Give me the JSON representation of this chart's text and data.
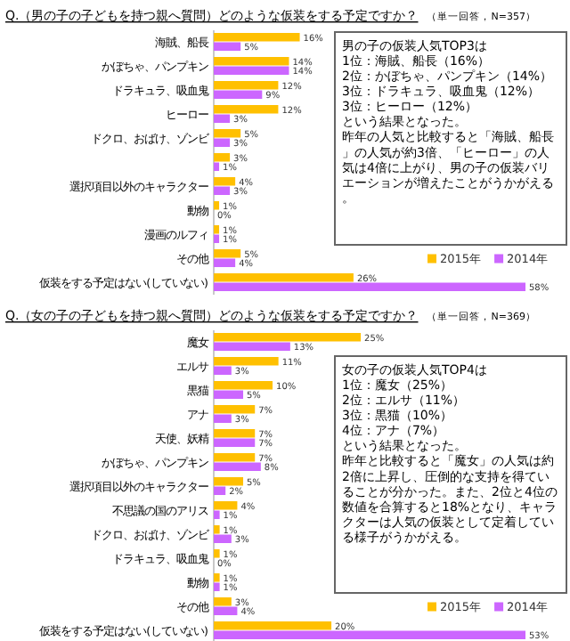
{
  "chart_data": [
    {
      "type": "bar",
      "orientation": "horizontal",
      "title": "Q.（男の子の子どもを持つ親へ質問）どのような仮装をする予定ですか？",
      "subtitle": "（単一回答，N=357）",
      "categories": [
        "海賊、船長",
        "かぼちゃ、パンプキン",
        "ドラキュラ、吸血鬼",
        "ヒーロー",
        "ドクロ、おばけ、ゾンビ",
        null,
        "選択項目以外のキャラクター",
        "動物",
        "漫画のルフィ",
        "その他",
        "仮装をする予定はない(していない)"
      ],
      "series": [
        {
          "name": "2015年",
          "color": "#ffc000",
          "values": [
            16,
            14,
            12,
            12,
            5,
            3,
            4,
            1,
            1,
            5,
            26
          ],
          "value_labels": [
            "16%",
            "14%",
            "12%",
            "12%",
            "5%",
            "3%",
            "4%",
            "1%",
            "1%",
            "5%",
            "26%"
          ]
        },
        {
          "name": "2014年",
          "color": "#cc66ff",
          "values": [
            5,
            14,
            9,
            3,
            3,
            1,
            3,
            0,
            1,
            4,
            58
          ],
          "value_labels": [
            "5%",
            "14%",
            "9%",
            "3%",
            "3%",
            "1%",
            "3%",
            "0%",
            "1%",
            "4%",
            "58%"
          ]
        }
      ],
      "legend": "bottom right",
      "annotations": [
        "男の子の仮装人気TOP3は",
        "1位：海賊、船長（16%）",
        "2位：かぼちゃ、パンプキン（14%）",
        "3位：ドラキュラ、吸血鬼（12%）",
        "3位：ヒーロー（12%）",
        "という結果となった。",
        "昨年の人気と比較すると「海賊、船長」の人気が約3倍、「ヒーロー」の人気は4倍に上がり、男の子の仮装バリエーションが増えたことがうかがえる。"
      ]
    },
    {
      "type": "bar",
      "orientation": "horizontal",
      "title": "Q.（女の子の子どもを持つ親へ質問）どのような仮装をする予定ですか？",
      "subtitle": "（単一回答，N=369）",
      "categories": [
        "魔女",
        "エルサ",
        "黒猫",
        "アナ",
        "天使、妖精",
        "かぼちゃ、パンプキン",
        "選択項目以外のキャラクター",
        "不思議の国のアリス",
        "ドクロ、おばけ、ゾンビ",
        "ドラキュラ、吸血鬼",
        "動物",
        "その他",
        "仮装をする予定はない(していない)"
      ],
      "series": [
        {
          "name": "2015年",
          "color": "#ffc000",
          "values": [
            25,
            11,
            10,
            7,
            7,
            7,
            5,
            4,
            1,
            1,
            1,
            3,
            20
          ],
          "value_labels": [
            "25%",
            "11%",
            "10%",
            "7%",
            "7%",
            "7%",
            "5%",
            "4%",
            "1%",
            "1%",
            "1%",
            "3%",
            "20%"
          ]
        },
        {
          "name": "2014年",
          "color": "#cc66ff",
          "values": [
            13,
            3,
            5,
            3,
            7,
            8,
            2,
            1,
            3,
            0,
            1,
            4,
            53
          ],
          "value_labels": [
            "13%",
            "3%",
            "5%",
            "3%",
            "7%",
            "8%",
            "2%",
            "1%",
            "3%",
            "0%",
            "1%",
            "4%",
            "53%"
          ]
        }
      ],
      "legend": "bottom right",
      "annotations": [
        "女の子の仮装人気TOP4は",
        "1位：魔女（25%）",
        "2位：エルサ（11%）",
        "3位：黒猫（10%）",
        "4位：アナ（7%）",
        "という結果となった。",
        "昨年と比較すると「魔女」の人気は約2倍に上昇し、圧倒的な支持を得ていることが分かった。また、2位と4位の数値を合算すると18%となり、キャラクターは人気の仮装として定着している様子がうかがえる。"
      ]
    }
  ]
}
